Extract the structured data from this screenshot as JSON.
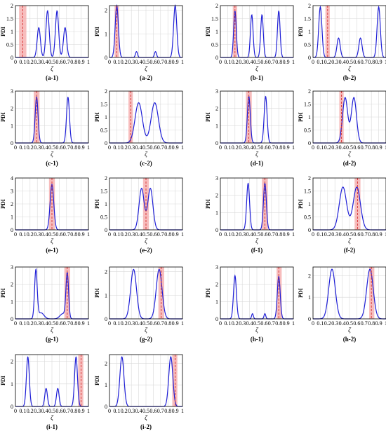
{
  "colors": {
    "curve": "#1f1fd6",
    "band": "#f4a7a7",
    "marker": "#d83333",
    "grid": "#d9d9d9",
    "axis": "#000000"
  },
  "chart_data": [
    {
      "caption": "(a-1)",
      "type": "line",
      "xlabel": "ζ",
      "ylabel": "PDI",
      "xlim": [
        0,
        1
      ],
      "ylim": [
        0,
        2
      ],
      "xticks": [
        "0",
        "0.1",
        "0.2",
        "0.3",
        "0.4",
        "0.5",
        "0.6",
        "0.7",
        "0.8",
        "0.9",
        "1"
      ],
      "yticks": [
        "0",
        "0.5",
        "1",
        "1.5",
        "2"
      ],
      "band": [
        0.05,
        0.15
      ],
      "marker": 0.1,
      "peaks": [
        {
          "x": 0.32,
          "h": 1.15,
          "w": 0.022
        },
        {
          "x": 0.44,
          "h": 1.8,
          "w": 0.022
        },
        {
          "x": 0.57,
          "h": 1.8,
          "w": 0.022
        },
        {
          "x": 0.68,
          "h": 1.15,
          "w": 0.022
        }
      ]
    },
    {
      "caption": "(a-2)",
      "type": "line",
      "xlabel": "ζ",
      "ylabel": "PDI",
      "xlim": [
        0,
        1
      ],
      "ylim": [
        0,
        2.2
      ],
      "xticks": [
        "0",
        "0.1",
        "0.2",
        "0.3",
        "0.4",
        "0.5",
        "0.6",
        "0.7",
        "0.8",
        "0.9",
        "1"
      ],
      "yticks": [
        "0",
        "1",
        "2"
      ],
      "band": [
        0.07,
        0.13
      ],
      "marker": 0.1,
      "peaks": [
        {
          "x": 0.1,
          "h": 2.2,
          "w": 0.022
        },
        {
          "x": 0.37,
          "h": 0.25,
          "w": 0.014
        },
        {
          "x": 0.63,
          "h": 0.25,
          "w": 0.014
        },
        {
          "x": 0.9,
          "h": 2.2,
          "w": 0.022
        }
      ]
    },
    {
      "caption": "(b-1)",
      "type": "line",
      "xlabel": "ζ",
      "ylabel": "PDI",
      "xlim": [
        0,
        1
      ],
      "ylim": [
        0,
        2
      ],
      "xticks": [
        "0",
        "0.1",
        "0.2",
        "0.3",
        "0.4",
        "0.5",
        "0.6",
        "0.7",
        "0.8",
        "0.9",
        "1"
      ],
      "yticks": [
        "0",
        "0.5",
        "1",
        "1.5",
        "2"
      ],
      "band": [
        0.17,
        0.23
      ],
      "marker": 0.2,
      "peaks": [
        {
          "x": 0.2,
          "h": 1.8,
          "w": 0.018
        },
        {
          "x": 0.43,
          "h": 1.65,
          "w": 0.018
        },
        {
          "x": 0.57,
          "h": 1.65,
          "w": 0.018
        },
        {
          "x": 0.8,
          "h": 1.8,
          "w": 0.018
        }
      ]
    },
    {
      "caption": "(b-2)",
      "type": "line",
      "xlabel": "ζ",
      "ylabel": "PDI",
      "xlim": [
        0,
        1
      ],
      "ylim": [
        0,
        2
      ],
      "xticks": [
        "0",
        "0.1",
        "0.2",
        "0.3",
        "0.4",
        "0.5",
        "0.6",
        "0.7",
        "0.8",
        "0.9",
        "1"
      ],
      "yticks": [
        "0",
        "0.5",
        "1",
        "1.5",
        "2"
      ],
      "band": [
        0.17,
        0.23
      ],
      "marker": 0.2,
      "peaks": [
        {
          "x": 0.1,
          "h": 1.95,
          "w": 0.022
        },
        {
          "x": 0.35,
          "h": 0.75,
          "w": 0.022
        },
        {
          "x": 0.65,
          "h": 0.75,
          "w": 0.022
        },
        {
          "x": 0.9,
          "h": 1.95,
          "w": 0.022
        }
      ]
    },
    {
      "caption": "(c-1)",
      "type": "line",
      "xlabel": "ζ",
      "ylabel": "PDI",
      "xlim": [
        0,
        1
      ],
      "ylim": [
        0,
        3
      ],
      "xticks": [
        "0",
        "0.1",
        "0.2",
        "0.3",
        "0.4",
        "0.5",
        "0.6",
        "0.7",
        "0.8",
        "0.9",
        "1"
      ],
      "yticks": [
        "0",
        "1",
        "2",
        "3"
      ],
      "band": [
        0.25,
        0.33
      ],
      "marker": 0.29,
      "peaks": [
        {
          "x": 0.29,
          "h": 2.65,
          "w": 0.02
        },
        {
          "x": 0.72,
          "h": 2.65,
          "w": 0.02
        }
      ]
    },
    {
      "caption": "(c-2)",
      "type": "line",
      "xlabel": "ζ",
      "ylabel": "PDI",
      "xlim": [
        0,
        1
      ],
      "ylim": [
        0,
        2
      ],
      "xticks": [
        "0",
        "0.1",
        "0.2",
        "0.3",
        "0.4",
        "0.5",
        "0.6",
        "0.7",
        "0.8",
        "0.9",
        "1"
      ],
      "yticks": [
        "0",
        "0.5",
        "1",
        "1.5",
        "2"
      ],
      "band": [
        0.26,
        0.32
      ],
      "marker": 0.29,
      "peaks": [
        {
          "x": 0.4,
          "h": 1.55,
          "w": 0.05
        },
        {
          "x": 0.62,
          "h": 1.55,
          "w": 0.05
        }
      ]
    },
    {
      "caption": "(d-1)",
      "type": "line",
      "xlabel": "ζ",
      "ylabel": "PDI",
      "xlim": [
        0,
        1
      ],
      "ylim": [
        0,
        3
      ],
      "xticks": [
        "0",
        "0.1",
        "0.2",
        "0.3",
        "0.4",
        "0.5",
        "0.6",
        "0.7",
        "0.8",
        "0.9",
        "1"
      ],
      "yticks": [
        "0",
        "1",
        "2",
        "3"
      ],
      "band": [
        0.35,
        0.43
      ],
      "marker": 0.39,
      "peaks": [
        {
          "x": 0.39,
          "h": 2.7,
          "w": 0.02
        },
        {
          "x": 0.62,
          "h": 2.7,
          "w": 0.02
        }
      ]
    },
    {
      "caption": "(d-2)",
      "type": "line",
      "xlabel": "ζ",
      "ylabel": "PDI",
      "xlim": [
        0,
        1
      ],
      "ylim": [
        0,
        2
      ],
      "xticks": [
        "0",
        "0.1",
        "0.2",
        "0.3",
        "0.4",
        "0.5",
        "0.6",
        "0.7",
        "0.8",
        "0.9",
        "1"
      ],
      "yticks": [
        "0",
        "0.5",
        "1",
        "1.5",
        "2"
      ],
      "band": [
        0.36,
        0.42
      ],
      "marker": 0.39,
      "peaks": [
        {
          "x": 0.44,
          "h": 1.75,
          "w": 0.035
        },
        {
          "x": 0.56,
          "h": 1.75,
          "w": 0.035
        }
      ]
    },
    {
      "caption": "(e-1)",
      "type": "line",
      "xlabel": "ζ",
      "ylabel": "PDI",
      "xlim": [
        0,
        1
      ],
      "ylim": [
        0,
        4
      ],
      "xticks": [
        "0",
        "0.1",
        "0.2",
        "0.3",
        "0.4",
        "0.5",
        "0.6",
        "0.7",
        "0.8",
        "0.9",
        "1"
      ],
      "yticks": [
        "0",
        "1",
        "2",
        "3",
        "4"
      ],
      "band": [
        0.46,
        0.54
      ],
      "marker": 0.5,
      "peaks": [
        {
          "x": 0.5,
          "h": 3.5,
          "w": 0.025
        }
      ]
    },
    {
      "caption": "(e-2)",
      "type": "line",
      "xlabel": "ζ",
      "ylabel": "PDI",
      "xlim": [
        0,
        1
      ],
      "ylim": [
        0,
        2
      ],
      "xticks": [
        "0",
        "0.1",
        "0.2",
        "0.3",
        "0.4",
        "0.5",
        "0.6",
        "0.7",
        "0.8",
        "0.9",
        "1"
      ],
      "yticks": [
        "0",
        "0.5",
        "1",
        "1.5",
        "2"
      ],
      "band": [
        0.46,
        0.54
      ],
      "marker": 0.5,
      "peaks": [
        {
          "x": 0.44,
          "h": 1.6,
          "w": 0.035
        },
        {
          "x": 0.56,
          "h": 1.6,
          "w": 0.035
        }
      ]
    },
    {
      "caption": "(f-1)",
      "type": "line",
      "xlabel": "ζ",
      "ylabel": "PDI",
      "xlim": [
        0,
        1
      ],
      "ylim": [
        0,
        3
      ],
      "xticks": [
        "0",
        "0.1",
        "0.2",
        "0.3",
        "0.4",
        "0.5",
        "0.6",
        "0.7",
        "0.8",
        "0.9",
        "1"
      ],
      "yticks": [
        "0",
        "1",
        "2",
        "3"
      ],
      "band": [
        0.57,
        0.65
      ],
      "marker": 0.61,
      "peaks": [
        {
          "x": 0.38,
          "h": 2.7,
          "w": 0.02
        },
        {
          "x": 0.61,
          "h": 2.7,
          "w": 0.02
        }
      ]
    },
    {
      "caption": "(f-2)",
      "type": "line",
      "xlabel": "ζ",
      "ylabel": "PDI",
      "xlim": [
        0,
        1
      ],
      "ylim": [
        0,
        2
      ],
      "xticks": [
        "0",
        "0.1",
        "0.2",
        "0.3",
        "0.4",
        "0.5",
        "0.6",
        "0.7",
        "0.8",
        "0.9",
        "1"
      ],
      "yticks": [
        "0",
        "0.5",
        "1",
        "1.5",
        "2"
      ],
      "band": [
        0.57,
        0.65
      ],
      "marker": 0.61,
      "peaks": [
        {
          "x": 0.41,
          "h": 1.65,
          "w": 0.05
        },
        {
          "x": 0.6,
          "h": 1.65,
          "w": 0.05
        }
      ]
    },
    {
      "caption": "(g-1)",
      "type": "line",
      "xlabel": "ζ",
      "ylabel": "PDI",
      "xlim": [
        0,
        1
      ],
      "ylim": [
        0,
        3
      ],
      "xticks": [
        "0",
        "0.1",
        "0.2",
        "0.3",
        "0.4",
        "0.5",
        "0.6",
        "0.7",
        "0.8",
        "0.9",
        "1"
      ],
      "yticks": [
        "0",
        "1",
        "2",
        "3"
      ],
      "band": [
        0.67,
        0.75
      ],
      "marker": 0.71,
      "peaks": [
        {
          "x": 0.28,
          "h": 2.8,
          "w": 0.018
        },
        {
          "x": 0.35,
          "h": 0.35,
          "w": 0.04
        },
        {
          "x": 0.65,
          "h": 0.3,
          "w": 0.04
        },
        {
          "x": 0.71,
          "h": 2.6,
          "w": 0.018
        }
      ]
    },
    {
      "caption": "(g-2)",
      "type": "line",
      "xlabel": "ζ",
      "ylabel": "PDI",
      "xlim": [
        0,
        1
      ],
      "ylim": [
        0,
        2.2
      ],
      "xticks": [
        "0",
        "0.1",
        "0.2",
        "0.3",
        "0.4",
        "0.5",
        "0.6",
        "0.7",
        "0.8",
        "0.9",
        "1"
      ],
      "yticks": [
        "0",
        "1",
        "2"
      ],
      "band": [
        0.67,
        0.75
      ],
      "marker": 0.71,
      "peaks": [
        {
          "x": 0.33,
          "h": 2.1,
          "w": 0.04
        },
        {
          "x": 0.68,
          "h": 2.1,
          "w": 0.04
        }
      ]
    },
    {
      "caption": "(h-1)",
      "type": "line",
      "xlabel": "ζ",
      "ylabel": "PDI",
      "xlim": [
        0,
        1
      ],
      "ylim": [
        0,
        3
      ],
      "xticks": [
        "0",
        "0.1",
        "0.2",
        "0.3",
        "0.4",
        "0.5",
        "0.6",
        "0.7",
        "0.8",
        "0.9",
        "1"
      ],
      "yticks": [
        "0",
        "1",
        "2",
        "3"
      ],
      "band": [
        0.77,
        0.84
      ],
      "marker": 0.8,
      "peaks": [
        {
          "x": 0.2,
          "h": 2.5,
          "w": 0.02
        },
        {
          "x": 0.44,
          "h": 0.3,
          "w": 0.012
        },
        {
          "x": 0.61,
          "h": 0.3,
          "w": 0.012
        },
        {
          "x": 0.8,
          "h": 2.45,
          "w": 0.02
        }
      ]
    },
    {
      "caption": "(h-2)",
      "type": "line",
      "xlabel": "ζ",
      "ylabel": "PDI",
      "xlim": [
        0,
        1
      ],
      "ylim": [
        0,
        2.4
      ],
      "xticks": [
        "0",
        "0.1",
        "0.2",
        "0.3",
        "0.4",
        "0.5",
        "0.6",
        "0.7",
        "0.8",
        "0.9",
        "1"
      ],
      "yticks": [
        "0",
        "1",
        "2"
      ],
      "band": [
        0.77,
        0.84
      ],
      "marker": 0.8,
      "peaks": [
        {
          "x": 0.26,
          "h": 2.3,
          "w": 0.045
        },
        {
          "x": 0.78,
          "h": 2.3,
          "w": 0.045
        }
      ]
    },
    {
      "caption": "(i-1)",
      "type": "line",
      "xlabel": "ζ",
      "ylabel": "PDI",
      "xlim": [
        0,
        1
      ],
      "ylim": [
        0,
        2.3
      ],
      "xticks": [
        "0",
        "0.1",
        "0.2",
        "0.3",
        "0.4",
        "0.5",
        "0.6",
        "0.7",
        "0.8",
        "0.9",
        "1"
      ],
      "yticks": [
        "0",
        "1",
        "2"
      ],
      "band": [
        0.86,
        0.93
      ],
      "marker": 0.9,
      "peaks": [
        {
          "x": 0.17,
          "h": 2.2,
          "w": 0.02
        },
        {
          "x": 0.42,
          "h": 0.8,
          "w": 0.018
        },
        {
          "x": 0.58,
          "h": 0.8,
          "w": 0.018
        },
        {
          "x": 0.83,
          "h": 2.2,
          "w": 0.02
        }
      ]
    },
    {
      "caption": "(i-2)",
      "type": "line",
      "xlabel": "ζ",
      "ylabel": "PDI",
      "xlim": [
        0,
        1
      ],
      "ylim": [
        0,
        2.4
      ],
      "xticks": [
        "0",
        "0.1",
        "0.2",
        "0.3",
        "0.4",
        "0.5",
        "0.6",
        "0.7",
        "0.8",
        "0.9",
        "1"
      ],
      "yticks": [
        "0",
        "1",
        "2"
      ],
      "band": [
        0.86,
        0.93
      ],
      "marker": 0.9,
      "peaks": [
        {
          "x": 0.17,
          "h": 2.3,
          "w": 0.028
        },
        {
          "x": 0.84,
          "h": 2.3,
          "w": 0.028
        }
      ]
    }
  ]
}
